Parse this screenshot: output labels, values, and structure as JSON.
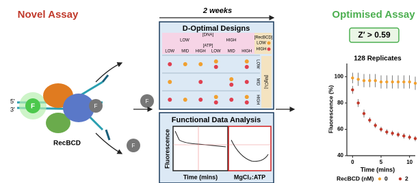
{
  "left": {
    "title": "Novel Assay",
    "strand_ends": [
      "5'",
      "3'"
    ],
    "fluorophore": "F",
    "enzyme": "RecBCD",
    "released": [
      "F",
      "F"
    ]
  },
  "timeline": "2 weeks",
  "design": {
    "title": "D-Optimal Designs",
    "dna_label": "[DNA]",
    "dna_levels": [
      "LOW",
      "HIGH"
    ],
    "atp_label": "[ATP]",
    "atp_levels": [
      "LOW",
      "MID",
      "HIGH",
      "LOW",
      "MID",
      "HIGH"
    ],
    "recbcd_label": "[RecBCD]",
    "recbcd_levels": [
      "LOW",
      "HIGH"
    ],
    "mg_label": "[MgCl₂]",
    "mg_levels": [
      "LOW",
      "MID",
      "HIGH"
    ]
  },
  "fda": {
    "title": "Functional Data Analysis",
    "y_label": "Fluorescence",
    "x_label_left": "Time (mins)",
    "x_label_right": "MgCl₂:ATP"
  },
  "right": {
    "title": "Optimised Assay",
    "badge": "Z′ > 0.59"
  },
  "chart_data": {
    "type": "scatter",
    "title": "128 Replicates",
    "y_label": "Fluorescence (%)",
    "x_label": "Time (mins)",
    "legend_title": "RecBCD (nM)",
    "x": [
      0,
      1,
      2,
      3,
      4,
      5,
      6,
      7,
      8,
      9,
      10,
      11
    ],
    "series": [
      {
        "name": "0",
        "color": "#f0a030",
        "values": [
          99,
          98,
          97,
          97,
          97,
          96,
          96,
          96,
          96,
          96,
          96,
          95
        ],
        "errors": [
          4,
          5,
          5,
          5,
          5,
          5,
          5,
          5,
          5,
          5,
          5,
          5
        ]
      },
      {
        "name": "2",
        "color": "#c0392b",
        "values": [
          90,
          80,
          72,
          67,
          63,
          60,
          58,
          57,
          56,
          55,
          54,
          53
        ],
        "errors": [
          3,
          3,
          3,
          2,
          2,
          2,
          2,
          2,
          2,
          2,
          2,
          2
        ]
      }
    ],
    "xlim": [
      -1,
      11
    ],
    "ylim": [
      40,
      110
    ],
    "xticks": [
      0,
      5,
      10
    ],
    "yticks": [
      40,
      60,
      80,
      100
    ]
  }
}
